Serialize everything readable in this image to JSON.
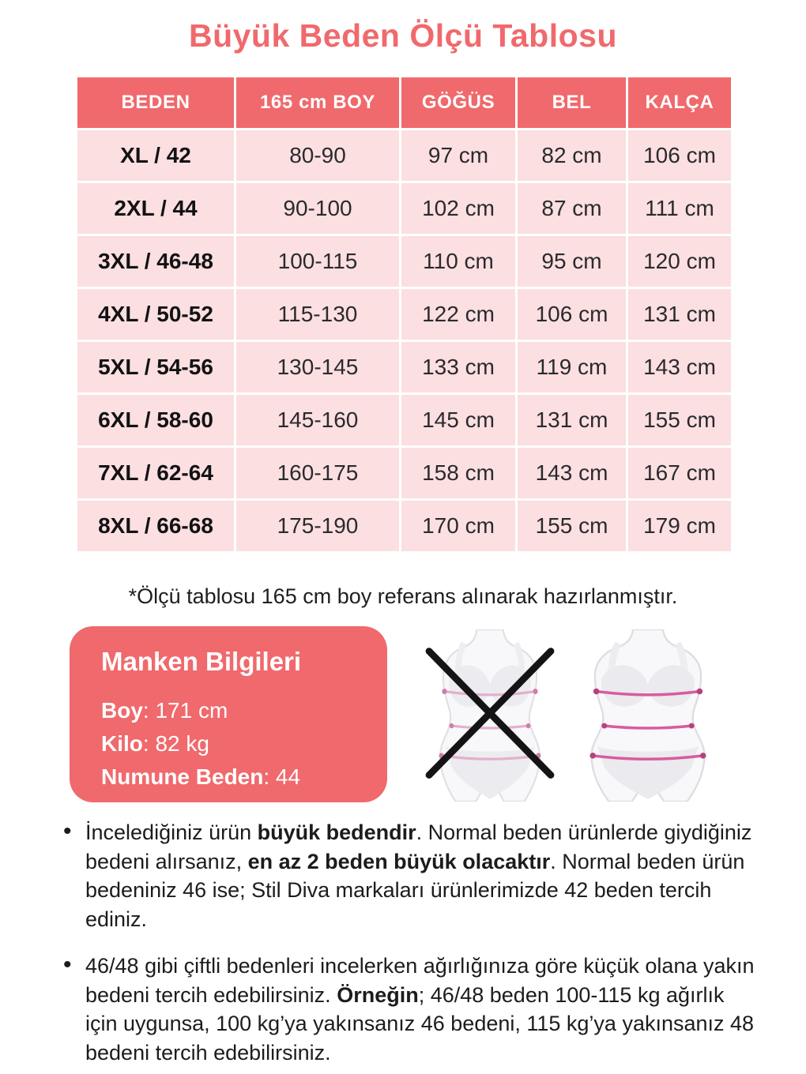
{
  "title": "Büyük Beden Ölçü Tablosu",
  "table": {
    "headers": [
      "BEDEN",
      "165 cm BOY",
      "GÖĞÜS",
      "BEL",
      "KALÇA"
    ],
    "rows": [
      [
        "XL / 42",
        "80-90",
        "97 cm",
        "82 cm",
        "106 cm"
      ],
      [
        "2XL / 44",
        "90-100",
        "102 cm",
        "87 cm",
        "111 cm"
      ],
      [
        "3XL / 46-48",
        "100-115",
        "110 cm",
        "95 cm",
        "120 cm"
      ],
      [
        "4XL / 50-52",
        "115-130",
        "122 cm",
        "106 cm",
        "131 cm"
      ],
      [
        "5XL / 54-56",
        "130-145",
        "133 cm",
        "119 cm",
        "143 cm"
      ],
      [
        "6XL / 58-60",
        "145-160",
        "145 cm",
        "131 cm",
        "155 cm"
      ],
      [
        "7XL / 62-64",
        "160-175",
        "158 cm",
        "143 cm",
        "167 cm"
      ],
      [
        "8XL / 66-68",
        "175-190",
        "170 cm",
        "155 cm",
        "179 cm"
      ]
    ]
  },
  "footnote": "*Ölçü tablosu 165 cm boy referans alınarak hazırlanmıştır.",
  "model_info": {
    "title": "Manken Bilgileri",
    "rows": [
      {
        "label": "Boy",
        "value": "171 cm"
      },
      {
        "label": "Kilo",
        "value": "82 kg"
      },
      {
        "label": "Numune Beden",
        "value": "44"
      }
    ]
  },
  "figures": {
    "incorrect_icon": "crossed-out-slim-body-measure-figure-icon",
    "correct_icon": "plus-size-body-measure-figure-icon"
  },
  "notes": [
    [
      {
        "text": "İncelediğiniz ürün ",
        "bold": false
      },
      {
        "text": "büyük bedendir",
        "bold": true
      },
      {
        "text": ". Normal beden ürünlerde giydiğiniz bedeni alırsanız, ",
        "bold": false
      },
      {
        "text": "en az 2 beden büyük olacaktır",
        "bold": true
      },
      {
        "text": ". Normal beden ürün bedeniniz 46 ise; Stil Diva markaları ürünlerimizde 42 beden tercih ediniz.",
        "bold": false
      }
    ],
    [
      {
        "text": "46/48 gibi çiftli bedenleri incelerken ağırlığınıza göre küçük olana yakın bedeni tercih edebilirsiniz. ",
        "bold": false
      },
      {
        "text": "Örneğin",
        "bold": true
      },
      {
        "text": "; 46/48 beden 100-115 kg ağırlık için uygunsa, 100 kg’ya yakınsanız 46 bedeni, 115 kg’ya yakınsanız 48 bedeni tercih edebilirsiniz.",
        "bold": false
      }
    ]
  ],
  "colors": {
    "accent": "#f0696c",
    "row_background": "#fbdfe1",
    "measure_line": "#d95b9d",
    "cross": "#141414"
  }
}
